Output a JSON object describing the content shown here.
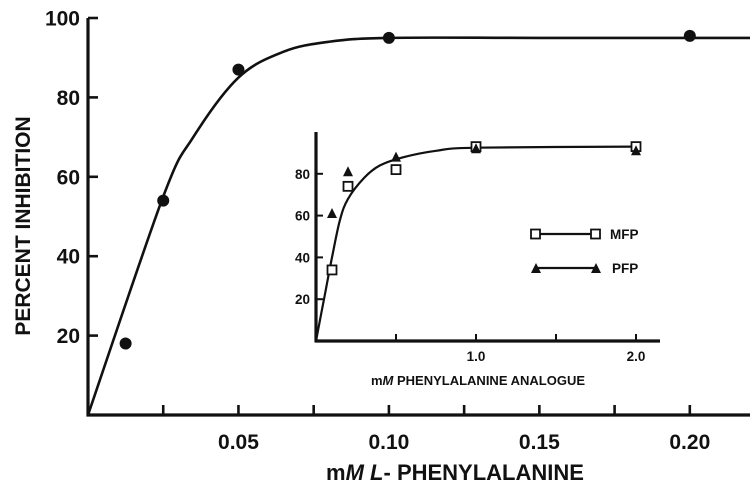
{
  "chart_data": [
    {
      "type": "scatter",
      "title": "",
      "xlabel": {
        "prefix": "m",
        "italic_unit": "M",
        "space": " ",
        "italic_l": "L",
        "rest": "- PHENYLALANINE"
      },
      "ylabel": "PERCENT INHIBITION",
      "xlim": [
        0,
        0.22
      ],
      "ylim": [
        0,
        100
      ],
      "x_ticks": [
        {
          "value": 0.025,
          "label": ""
        },
        {
          "value": 0.05,
          "label": "0.05"
        },
        {
          "value": 0.075,
          "label": ""
        },
        {
          "value": 0.1,
          "label": "0.10"
        },
        {
          "value": 0.125,
          "label": ""
        },
        {
          "value": 0.15,
          "label": "0.15"
        },
        {
          "value": 0.175,
          "label": ""
        },
        {
          "value": 0.2,
          "label": "0.20"
        }
      ],
      "y_ticks": [
        {
          "value": 20,
          "label": "20"
        },
        {
          "value": 40,
          "label": "40"
        },
        {
          "value": 60,
          "label": "60"
        },
        {
          "value": 80,
          "label": "80"
        },
        {
          "value": 100,
          "label": "100"
        }
      ],
      "points": [
        {
          "x": 0.0125,
          "y": 18
        },
        {
          "x": 0.025,
          "y": 54
        },
        {
          "x": 0.05,
          "y": 87
        },
        {
          "x": 0.1,
          "y": 95
        },
        {
          "x": 0.2,
          "y": 95.5
        }
      ],
      "fit_curve": [
        [
          0,
          0
        ],
        [
          0.025,
          55
        ],
        [
          0.035,
          70
        ],
        [
          0.05,
          85
        ],
        [
          0.065,
          91.5
        ],
        [
          0.08,
          94
        ],
        [
          0.1,
          95
        ],
        [
          0.15,
          95
        ],
        [
          0.22,
          95
        ]
      ],
      "grid": false,
      "marker": "filled-circle"
    },
    {
      "type": "scatter",
      "title": "",
      "xlabel": {
        "prefix": "m",
        "italic_unit": "M",
        "rest": " PHENYLALANINE ANALOGUE"
      },
      "ylabel": "",
      "xlim": [
        0,
        2.15
      ],
      "ylim": [
        0,
        100
      ],
      "x_ticks": [
        {
          "value": 0.5,
          "label": ""
        },
        {
          "value": 1.0,
          "label": "1.0"
        },
        {
          "value": 1.5,
          "label": ""
        },
        {
          "value": 2.0,
          "label": "2.0"
        }
      ],
      "y_ticks": [
        {
          "value": 20,
          "label": "20"
        },
        {
          "value": 40,
          "label": "40"
        },
        {
          "value": 60,
          "label": "60"
        },
        {
          "value": 80,
          "label": "80"
        }
      ],
      "series": [
        {
          "name": "MFP",
          "marker": "open-square",
          "points": [
            [
              0.1,
              34
            ],
            [
              0.2,
              74
            ],
            [
              0.5,
              82
            ],
            [
              1.0,
              93
            ],
            [
              2.0,
              93
            ]
          ]
        },
        {
          "name": "PFP",
          "marker": "filled-triangle",
          "points": [
            [
              0.1,
              61
            ],
            [
              0.2,
              81
            ],
            [
              0.5,
              88
            ],
            [
              1.0,
              92
            ],
            [
              2.0,
              91
            ]
          ]
        }
      ],
      "fit_curve": [
        [
          0,
          0
        ],
        [
          0.05,
          20
        ],
        [
          0.1,
          40
        ],
        [
          0.15,
          58
        ],
        [
          0.2,
          68
        ],
        [
          0.3,
          78
        ],
        [
          0.4,
          84
        ],
        [
          0.55,
          88
        ],
        [
          0.75,
          91
        ],
        [
          1.0,
          92.5
        ],
        [
          2.0,
          93
        ]
      ],
      "legend_position": "right",
      "grid": false
    }
  ]
}
